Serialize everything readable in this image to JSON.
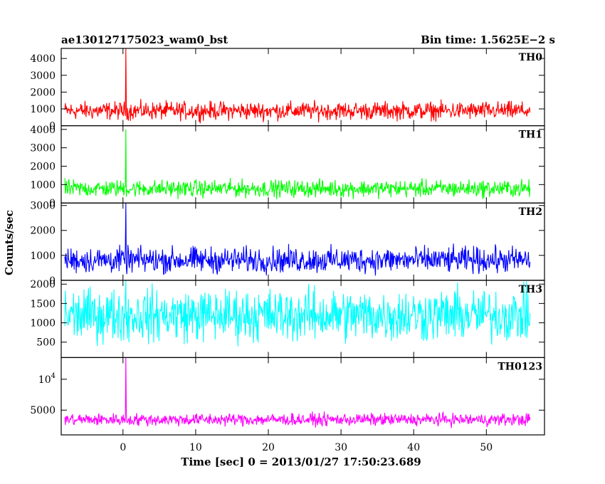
{
  "chart_data": {
    "type": "line",
    "title_left": "ae130127175023_wam0_bst",
    "title_right": "Bin time: 1.5625E−2 s",
    "xlabel": "Time [sec] 0 = 2013/01/27 17:50:23.689",
    "ylabel": "Counts/sec",
    "xlim": [
      -8.5,
      58
    ],
    "x_ticks": [
      0,
      10,
      20,
      30,
      40,
      50
    ],
    "x_tick_labels": [
      "0",
      "10",
      "20",
      "30",
      "40",
      "50"
    ],
    "data_x_range": [
      -8,
      56
    ],
    "burst_time": 0.4,
    "grid": false,
    "series": [
      {
        "name": "TH0",
        "color": "#ff0000",
        "ylim": [
          0,
          4600
        ],
        "y_ticks": [
          0,
          1000,
          2000,
          3000,
          4000
        ],
        "y_tick_labels": [
          "0",
          "1000",
          "2000",
          "3000",
          "4000"
        ],
        "typical_range": [
          100,
          1600
        ],
        "baseline": 800,
        "peak": 4600
      },
      {
        "name": "TH1",
        "color": "#00ff00",
        "ylim": [
          0,
          4200
        ],
        "y_ticks": [
          0,
          1000,
          2000,
          3000,
          4000
        ],
        "y_tick_labels": [
          "0",
          "1000",
          "2000",
          "3000",
          "4000"
        ],
        "typical_range": [
          100,
          1400
        ],
        "baseline": 600,
        "peak": 4000
      },
      {
        "name": "TH2",
        "color": "#0000ff",
        "ylim": [
          0,
          3100
        ],
        "y_ticks": [
          0,
          1000,
          2000,
          3000
        ],
        "y_tick_labels": [
          "0",
          "1000",
          "2000",
          "3000"
        ],
        "typical_range": [
          50,
          1500
        ],
        "baseline": 650,
        "peak": 3100
      },
      {
        "name": "TH3",
        "color": "#00ffff",
        "ylim": [
          100,
          2100
        ],
        "y_ticks": [
          500,
          1000,
          1500,
          2000
        ],
        "y_tick_labels": [
          "500",
          "1000",
          "1500",
          "2000"
        ],
        "typical_range": [
          200,
          2100
        ],
        "baseline": 950,
        "peak": 2100
      },
      {
        "name": "TH0123",
        "color": "#ff00ff",
        "ylim": [
          1000,
          13500
        ],
        "y_ticks": [
          5000,
          10000
        ],
        "y_tick_labels": [
          "5000",
          "10^4"
        ],
        "typical_range": [
          2000,
          4800
        ],
        "baseline": 3100,
        "peak": 13500
      }
    ]
  }
}
